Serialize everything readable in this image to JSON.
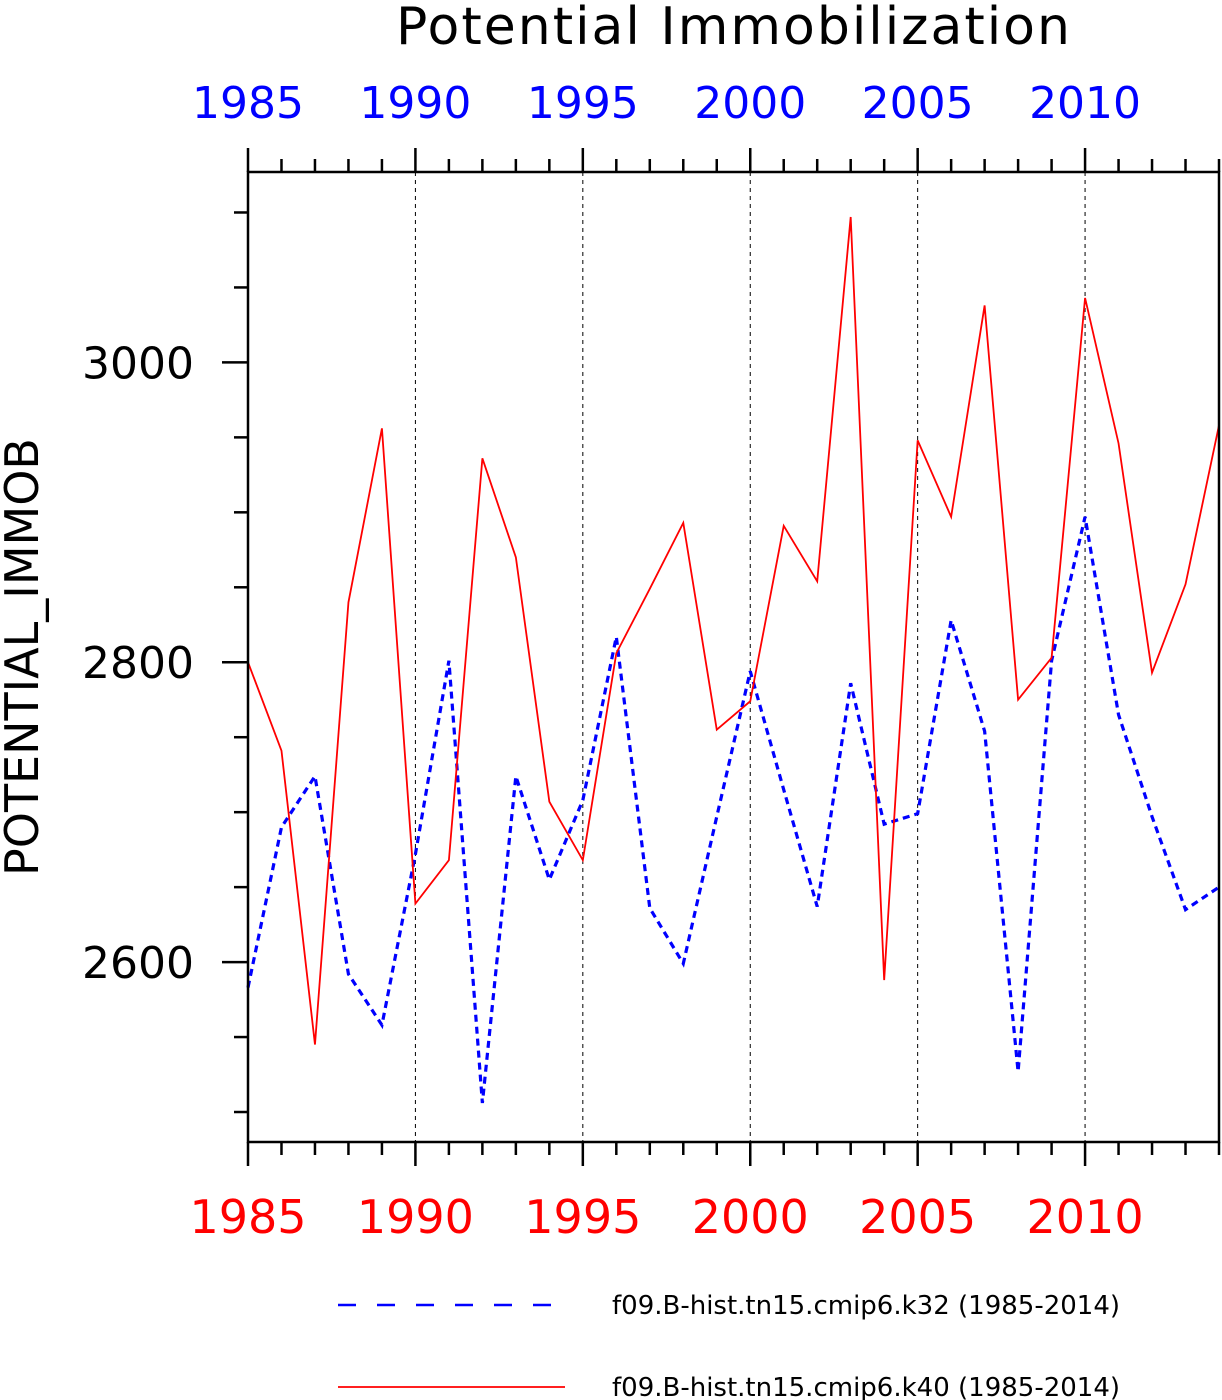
{
  "chart_data": {
    "type": "line",
    "title": "Potential Immobilization",
    "ylabel": "POTENTIAL_IMMOB",
    "xlabel": "",
    "xlim": [
      1985,
      2014
    ],
    "ylim": [
      2480,
      3127
    ],
    "grid": "vertical dashed lines at major x ticks",
    "x": [
      1985,
      1986,
      1987,
      1988,
      1989,
      1990,
      1991,
      1992,
      1993,
      1994,
      1995,
      1996,
      1997,
      1998,
      1999,
      2000,
      2001,
      2002,
      2003,
      2004,
      2005,
      2006,
      2007,
      2008,
      2009,
      2010,
      2011,
      2012,
      2013,
      2014
    ],
    "x_ticks": [
      "1985",
      "1990",
      "1995",
      "2000",
      "2005",
      "2010"
    ],
    "y_ticks": [
      "2600",
      "2800",
      "3000"
    ],
    "top_axis_color": "#0000ff",
    "bottom_axis_color": "#ff0000",
    "series": [
      {
        "name": "f09.B-hist.tn15.cmip6.k32 (1985-2014)",
        "color": "#0000ff",
        "style": "dashed",
        "values": [
          2583,
          2690,
          2724,
          2592,
          2558,
          2672,
          2801,
          2506,
          2724,
          2655,
          2708,
          2817,
          2636,
          2599,
          2697,
          2794,
          2715,
          2637,
          2786,
          2692,
          2699,
          2828,
          2754,
          2527,
          2801,
          2897,
          2765,
          2697,
          2635,
          2650
        ]
      },
      {
        "name": "f09.B-hist.tn15.cmip6.k40 (1985-2014)",
        "color": "#ff0000",
        "style": "solid",
        "values": [
          2800,
          2741,
          2545,
          2840,
          2956,
          2639,
          2668,
          2936,
          2870,
          2707,
          2668,
          2806,
          2849,
          2893,
          2755,
          2774,
          2891,
          2854,
          3097,
          2588,
          2948,
          2897,
          3038,
          2775,
          2803,
          3043,
          2946,
          2793,
          2852,
          2958
        ]
      }
    ]
  }
}
